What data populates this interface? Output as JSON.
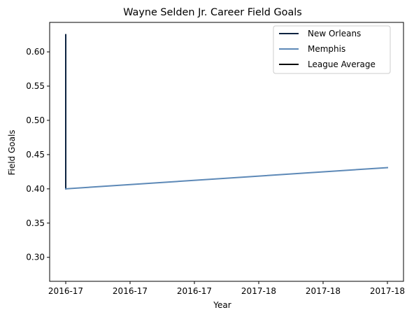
{
  "chart_data": {
    "type": "line",
    "title": "Wayne Selden Jr. Career Field Goals",
    "xlabel": "Year",
    "ylabel": "Field Goals",
    "x_tick_labels": [
      "2016-17",
      "2016-17",
      "2016-17",
      "2017-18",
      "2017-18",
      "2017-18"
    ],
    "x_range": [
      -0.05,
      1.05
    ],
    "y_ticks": [
      0.3,
      0.35,
      0.4,
      0.45,
      0.5,
      0.55,
      0.6
    ],
    "y_tick_labels": [
      "0.30",
      "0.35",
      "0.40",
      "0.45",
      "0.50",
      "0.55",
      "0.60"
    ],
    "ylim": [
      0.265,
      0.643
    ],
    "grid": false,
    "legend_position": "top-right",
    "series": [
      {
        "name": "New Orleans",
        "color": "#0C2340",
        "x": [
          0.0,
          0.0
        ],
        "y": [
          0.625,
          0.4
        ]
      },
      {
        "name": "Memphis",
        "color": "#5D89B7",
        "x": [
          0.0,
          1.0
        ],
        "y": [
          0.4,
          0.431
        ]
      },
      {
        "name": "League Average",
        "color": "#000000",
        "x": [],
        "y": []
      }
    ]
  }
}
